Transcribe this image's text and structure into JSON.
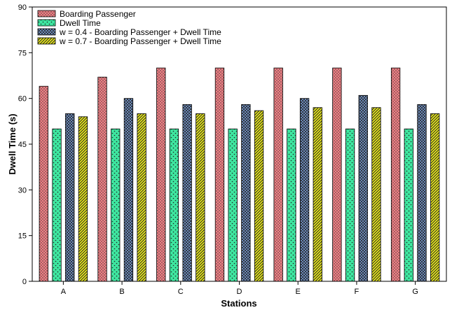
{
  "chart_data": {
    "type": "bar",
    "title": "",
    "xlabel": "Stations",
    "ylabel": "Dwell Time  (s)",
    "categories": [
      "A",
      "B",
      "C",
      "D",
      "E",
      "F",
      "G"
    ],
    "ylim": [
      0,
      90
    ],
    "yticks": [
      0,
      15,
      30,
      45,
      60,
      75,
      90
    ],
    "grid": false,
    "legend_position": "top-left",
    "series": [
      {
        "name": "Boarding Passenger",
        "values": [
          64,
          67,
          70,
          70,
          70,
          70,
          70
        ],
        "color": "#f07f84",
        "pattern": "dense-dots"
      },
      {
        "name": "Dwell Time",
        "values": [
          50,
          50,
          50,
          50,
          50,
          50,
          50
        ],
        "color": "#3ee6a0",
        "pattern": "sparse-dots"
      },
      {
        "name": "w = 0.4 - Boarding Passenger + Dwell Time",
        "values": [
          55,
          60,
          58,
          58,
          60,
          61,
          58
        ],
        "color": "#7a9fd8",
        "pattern": "crosshatch"
      },
      {
        "name": "w = 0.7 - Boarding Passenger + Dwell Time",
        "values": [
          54,
          55,
          55,
          56,
          57,
          57,
          55
        ],
        "color": "#ecec1c",
        "pattern": "diagonal-lines"
      }
    ]
  }
}
